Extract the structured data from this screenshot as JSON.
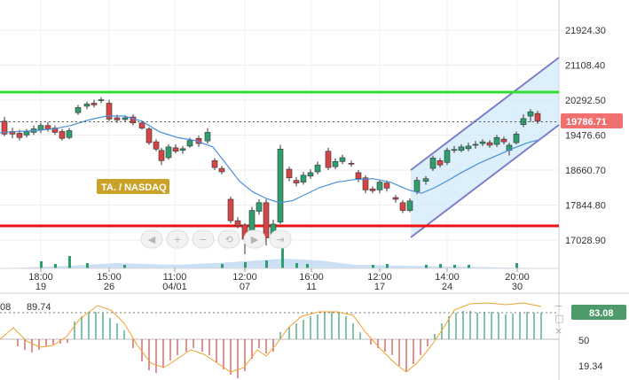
{
  "instrument_label": "TA. / NASDAQ",
  "price_axis": {
    "ticks": [
      "21924.30",
      "21108.40",
      "20292.50",
      "19476.60",
      "18660.70",
      "17844.80",
      "17028.90"
    ],
    "tick_values": [
      21924.3,
      21108.4,
      20292.5,
      19476.6,
      18660.7,
      17844.8,
      17028.9
    ],
    "current_price_label": "19786.71",
    "current_price": 19786.71
  },
  "time_axis": {
    "ticks": [
      {
        "time": "18:00",
        "day": "19"
      },
      {
        "time": "15:00",
        "day": "26"
      },
      {
        "time": "11:00",
        "day": "04/01"
      },
      {
        "time": "12:00",
        "day": "07"
      },
      {
        "time": "16:00",
        "day": "11"
      },
      {
        "time": "12:00",
        "day": "17"
      },
      {
        "time": "14:00",
        "day": "24"
      },
      {
        "time": "20:00",
        "day": "30"
      }
    ]
  },
  "oscillator": {
    "value_left": "08",
    "value_left2": "89.74",
    "value_right": "83.08",
    "levels": [
      "50",
      "19.34"
    ]
  },
  "colors": {
    "up": "#2e9e6e",
    "down": "#d64545",
    "support": "#ee1111",
    "resistance": "#33dd33",
    "channel": "#7b7fc8",
    "channel_fill": "#cfe8fa",
    "ma": "#4a90d9",
    "price_badge": "#f07070",
    "osc_badge": "#4e9a6a",
    "instrument_badge": "#c9a227",
    "osc_line": "#f0a030"
  },
  "toolbar_icons": [
    "arrow-left-icon",
    "zoom-in-icon",
    "zoom-out-icon",
    "reset-zoom-icon",
    "arrow-right-icon",
    "scroll-end-icon"
  ],
  "osc_corner_icons": [
    "minimize-icon",
    "maximize-icon",
    "close-icon"
  ]
}
